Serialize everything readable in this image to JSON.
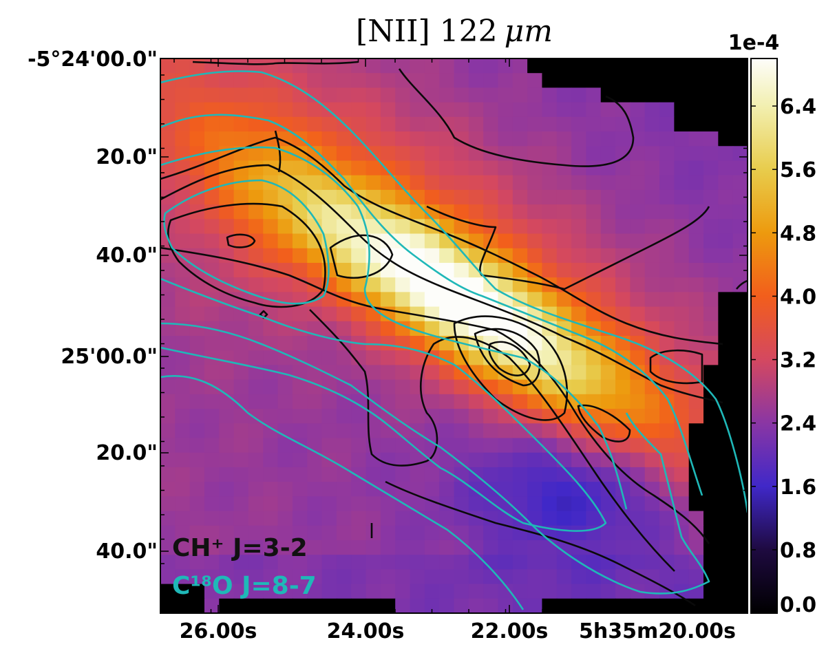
{
  "chart_data": {
    "type": "heatmap",
    "title_main": "[NII] 122",
    "title_unit": "μm",
    "colorbar": {
      "scale_label": "1e-4",
      "ticks": [
        "6.4",
        "5.6",
        "4.8",
        "4.0",
        "3.2",
        "2.4",
        "1.6",
        "0.8",
        "0.0"
      ],
      "tick_values": [
        6.4,
        5.6,
        4.8,
        4.0,
        3.2,
        2.4,
        1.6,
        0.8,
        0.0
      ],
      "range": [
        0.0,
        7.0
      ],
      "colormap": "CMRmap-like",
      "stops": [
        {
          "v": 0.0,
          "c": "#000000"
        },
        {
          "v": 0.8,
          "c": "#1e0a40"
        },
        {
          "v": 1.6,
          "c": "#4028c8"
        },
        {
          "v": 2.4,
          "c": "#8a36a4"
        },
        {
          "v": 3.2,
          "c": "#d44860"
        },
        {
          "v": 4.0,
          "c": "#f25e1c"
        },
        {
          "v": 4.8,
          "c": "#ed9a0e"
        },
        {
          "v": 5.6,
          "c": "#e8cc4c"
        },
        {
          "v": 6.4,
          "c": "#f2efb0"
        },
        {
          "v": 7.0,
          "c": "#fdfdfa"
        }
      ]
    },
    "x_ticks": [
      "26.00s",
      "24.00s",
      "22.00s",
      "5h35m20.00s"
    ],
    "y_ticks": [
      "-5°24'00.0\"",
      "20.0\"",
      "40.0\"",
      "25'00.0\"",
      "20.0\"",
      "40.0\""
    ],
    "legend": [
      {
        "label": "CH⁺ J=3-2",
        "color": "#111111"
      },
      {
        "label": "C¹⁸O J=8-7",
        "color": "#1fb8b8"
      }
    ],
    "legend_placement": "bottom-left"
  }
}
